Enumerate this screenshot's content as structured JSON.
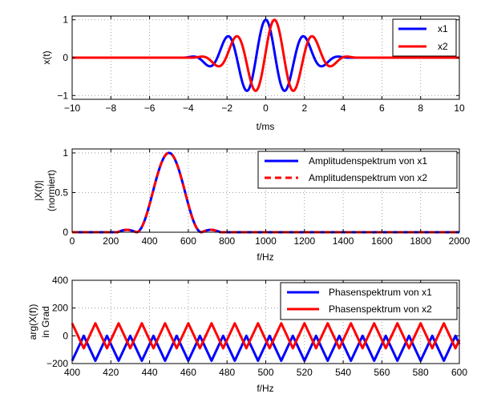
{
  "chart_data": [
    {
      "type": "line",
      "xlabel": "t/ms",
      "ylabel": "x(t)",
      "xlim": [
        -10,
        10
      ],
      "ylim": [
        -1.1,
        1.1
      ],
      "xticks": [
        -10,
        -8,
        -6,
        -4,
        -2,
        0,
        2,
        4,
        6,
        8,
        10
      ],
      "xtick_labels": [
        "−10",
        "−8",
        "−6",
        "−4",
        "−2",
        "0",
        "2",
        "4",
        "6",
        "8",
        "10"
      ],
      "yticks": [
        -1,
        0,
        1
      ],
      "ytick_labels": [
        "−1",
        "0",
        "1"
      ],
      "grid": true,
      "legend_position": "top-right",
      "series": [
        {
          "name": "x1",
          "color": "#0000ff",
          "style": "solid",
          "description": "windowed cosine at 500 Hz",
          "amplitude": 1,
          "frequency_hz": 500,
          "shift_ms": 0
        },
        {
          "name": "x2",
          "color": "#ff0000",
          "style": "solid",
          "description": "same pulse shifted",
          "amplitude": 1,
          "frequency_hz": 500,
          "shift_ms": 0.45
        }
      ]
    },
    {
      "type": "line",
      "xlabel": "f/Hz",
      "ylabel": "|X(f)|",
      "ylabel2": "(normiert)",
      "xlim": [
        0,
        2000
      ],
      "ylim": [
        0,
        1.05
      ],
      "xticks": [
        0,
        200,
        400,
        600,
        800,
        1000,
        1200,
        1400,
        1600,
        1800,
        2000
      ],
      "xtick_labels": [
        "0",
        "200",
        "400",
        "600",
        "800",
        "1000",
        "1200",
        "1400",
        "1600",
        "1800",
        "2000"
      ],
      "yticks": [
        0,
        0.5,
        1
      ],
      "ytick_labels": [
        "0",
        "0.5",
        "1"
      ],
      "grid": true,
      "legend_position": "top-right",
      "series": [
        {
          "name": "Amplitudenspektrum von x1",
          "color": "#0000ff",
          "style": "solid",
          "peak_hz": 500,
          "peak_value": 1
        },
        {
          "name": "Amplitudenspektrum von x2",
          "color": "#ff0000",
          "style": "dashed",
          "peak_hz": 500,
          "peak_value": 1
        }
      ]
    },
    {
      "type": "line",
      "xlabel": "f/Hz",
      "ylabel": "arg(X(f))",
      "ylabel2": "in Grad",
      "xlim": [
        400,
        600
      ],
      "ylim": [
        -200,
        400
      ],
      "xticks": [
        400,
        420,
        440,
        460,
        480,
        500,
        520,
        540,
        560,
        580,
        600
      ],
      "xtick_labels": [
        "400",
        "420",
        "440",
        "460",
        "480",
        "500",
        "520",
        "540",
        "560",
        "580",
        "600"
      ],
      "yticks": [
        -200,
        0,
        200,
        400
      ],
      "ytick_labels": [
        "−200",
        "0",
        "200",
        "400"
      ],
      "grid": true,
      "legend_position": "top-right",
      "series": [
        {
          "name": "Phasenspektrum von x1",
          "color": "#0000ff",
          "style": "solid",
          "min_deg": -180,
          "max_deg": 0,
          "period_hz": 12
        },
        {
          "name": "Phasenspektrum von x2",
          "color": "#ff0000",
          "style": "solid",
          "min_deg": -90,
          "max_deg": 90,
          "period_hz": 12
        }
      ]
    }
  ]
}
